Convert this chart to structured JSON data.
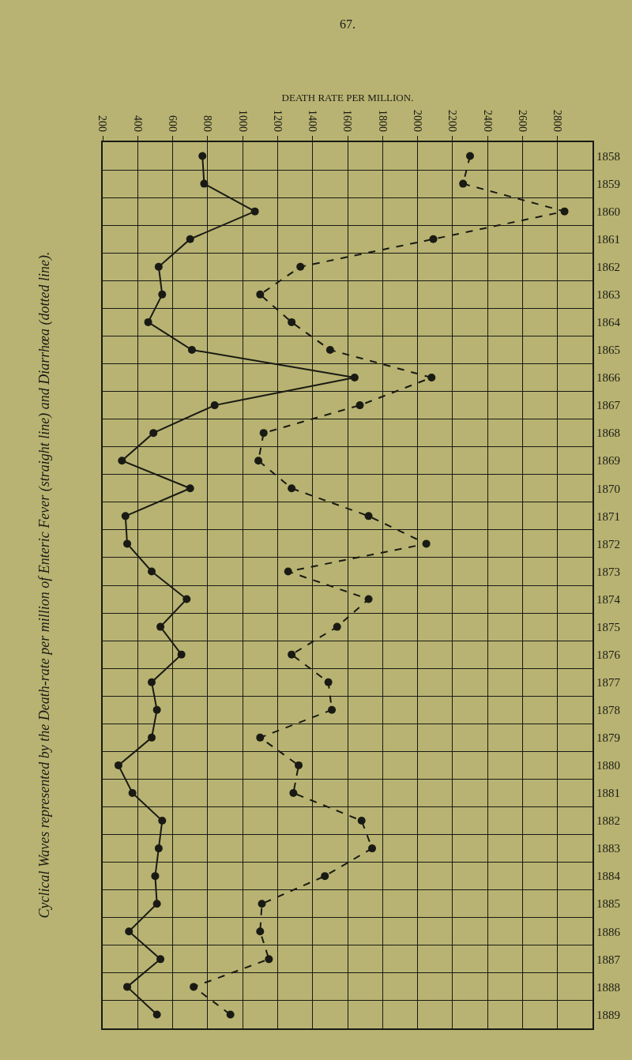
{
  "chart_data": {
    "type": "line",
    "orientation": "horizontal",
    "title": "Cyclical Waves represented by the Death-rate per million of Enteric Fever (straight line) and Diarrhœa (dotted line).",
    "xlabel": "DEATH RATE PER MILLION.",
    "annotations": [
      "67."
    ],
    "categories": [
      "1858",
      "1859",
      "1860",
      "1861",
      "1862",
      "1863",
      "1864",
      "1865",
      "1866",
      "1867",
      "1868",
      "1869",
      "1870",
      "1871",
      "1872",
      "1873",
      "1874",
      "1875",
      "1876",
      "1877",
      "1878",
      "1879",
      "1880",
      "1881",
      "1882",
      "1883",
      "1884",
      "1885",
      "1886",
      "1887",
      "1888",
      "1889"
    ],
    "series": [
      {
        "color": "#1a1a14",
        "line_style": "solid",
        "values": [
          770,
          780,
          1070,
          700,
          520,
          540,
          460,
          710,
          1640,
          840,
          490,
          310,
          700,
          330,
          340,
          480,
          680,
          530,
          650,
          480,
          510,
          480,
          290,
          370,
          540,
          520,
          500,
          510,
          350,
          530,
          340,
          510
        ]
      },
      {
        "color": "#1a1a14",
        "line_style": "dashed",
        "values": [
          2300,
          2260,
          2840,
          2090,
          1330,
          1100,
          1280,
          1500,
          2080,
          1670,
          1120,
          1090,
          1280,
          1720,
          2050,
          1260,
          1720,
          1540,
          1280,
          1490,
          1510,
          1100,
          1320,
          1290,
          1680,
          1740,
          1470,
          1110,
          1100,
          1150,
          720,
          930
        ]
      }
    ],
    "xlim": [
      200,
      3000
    ],
    "xticks": [
      200,
      400,
      600,
      800,
      1000,
      1200,
      1400,
      1600,
      1800,
      2000,
      2200,
      2400,
      2600,
      2800
    ],
    "grid": true,
    "marker": "circle"
  }
}
